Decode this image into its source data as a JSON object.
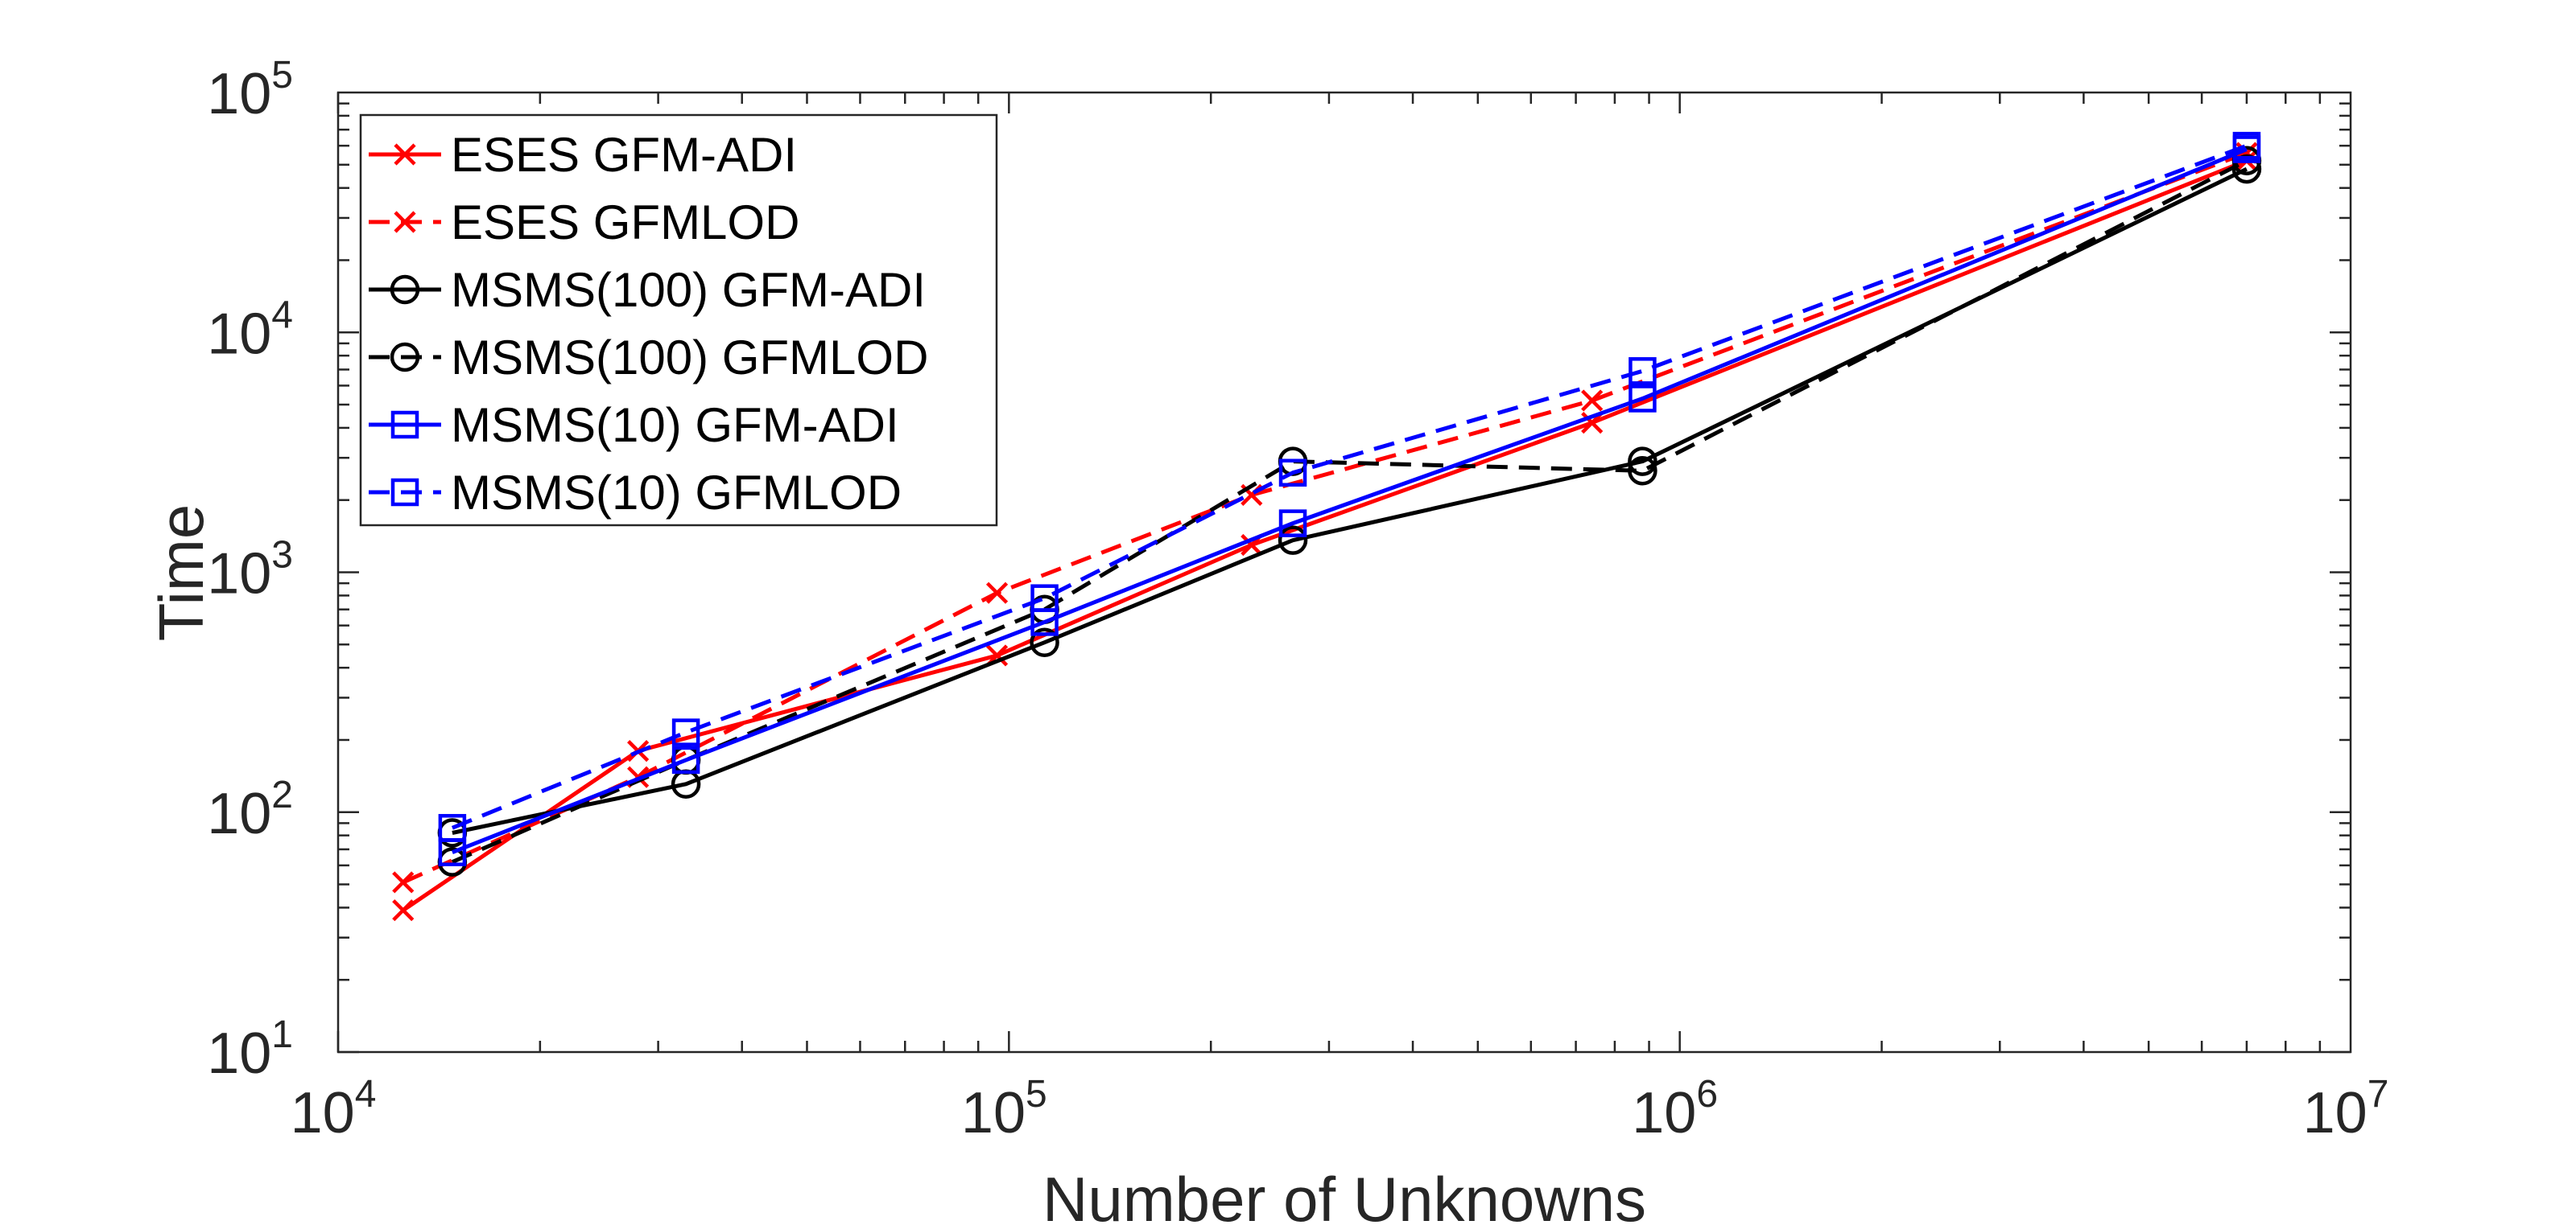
{
  "chart_data": {
    "type": "line",
    "title": "",
    "xlabel": "Number of Unknowns",
    "ylabel": "Time",
    "xscale": "log",
    "yscale": "log",
    "xlim": [
      10000,
      10000000
    ],
    "ylim": [
      10,
      100000
    ],
    "x_ticks": [
      {
        "base": "10",
        "exp": "4",
        "value": 10000
      },
      {
        "base": "10",
        "exp": "5",
        "value": 100000
      },
      {
        "base": "10",
        "exp": "6",
        "value": 1000000
      },
      {
        "base": "10",
        "exp": "7",
        "value": 10000000
      }
    ],
    "y_ticks": [
      {
        "base": "10",
        "exp": "1",
        "value": 10
      },
      {
        "base": "10",
        "exp": "2",
        "value": 100
      },
      {
        "base": "10",
        "exp": "3",
        "value": 1000
      },
      {
        "base": "10",
        "exp": "4",
        "value": 10000
      },
      {
        "base": "10",
        "exp": "5",
        "value": 100000
      }
    ],
    "grid": false,
    "legend_position": "top-left",
    "series": [
      {
        "name": "ESES GFM-ADI",
        "color": "#ff0000",
        "dash": "solid",
        "marker": "x",
        "x": [
          12500,
          28000,
          96000,
          230000,
          740000,
          7000000
        ],
        "y": [
          39,
          180,
          450,
          1300,
          4200,
          52000
        ]
      },
      {
        "name": "ESES GFMLOD",
        "color": "#ff0000",
        "dash": "dashed",
        "marker": "x",
        "x": [
          12500,
          28000,
          96000,
          230000,
          740000,
          7000000
        ],
        "y": [
          51,
          140,
          820,
          2100,
          5200,
          56000
        ]
      },
      {
        "name": "MSMS(100) GFM-ADI",
        "color": "#000000",
        "dash": "solid",
        "marker": "circle",
        "x": [
          14800,
          33000,
          113000,
          265000,
          880000,
          7000000
        ],
        "y": [
          82,
          131,
          510,
          1360,
          2900,
          48000
        ]
      },
      {
        "name": "MSMS(100) GFMLOD",
        "color": "#000000",
        "dash": "dashed",
        "marker": "circle",
        "x": [
          14800,
          33000,
          113000,
          265000,
          880000,
          7000000
        ],
        "y": [
          62,
          165,
          700,
          2900,
          2650,
          52000
        ]
      },
      {
        "name": "MSMS(10) GFM-ADI",
        "color": "#0000ff",
        "dash": "solid",
        "marker": "square",
        "x": [
          14800,
          33000,
          113000,
          265000,
          880000,
          7000000
        ],
        "y": [
          68,
          165,
          620,
          1600,
          5300,
          58000
        ]
      },
      {
        "name": "MSMS(10) GFMLOD",
        "color": "#0000ff",
        "dash": "dashed",
        "marker": "square",
        "x": [
          14800,
          33000,
          113000,
          265000,
          880000,
          7000000
        ],
        "y": [
          86,
          215,
          780,
          2600,
          6900,
          60000
        ]
      }
    ]
  }
}
